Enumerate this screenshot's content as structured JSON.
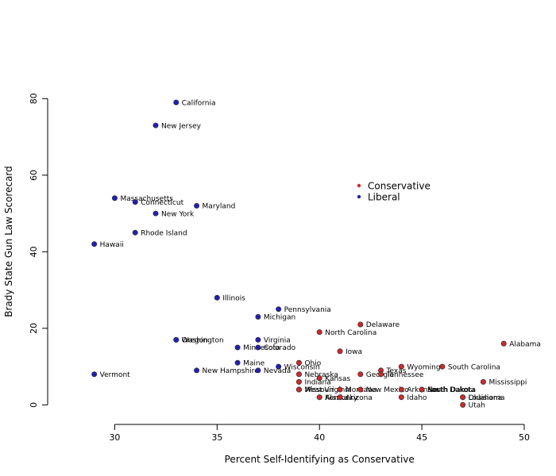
{
  "chart_data": {
    "type": "scatter",
    "title": "",
    "xlabel": "Percent Self-Identifying as Conservative",
    "ylabel": "Brady State Gun Law Scorecard",
    "xlim": [
      27.5,
      50
    ],
    "ylim": [
      -2,
      84
    ],
    "xticks": [
      30,
      35,
      40,
      45,
      50
    ],
    "yticks": [
      0,
      20,
      40,
      60,
      80
    ],
    "grid": false,
    "legend_position": "right-middle",
    "series": [
      {
        "name": "Conservative",
        "color": "#d62728",
        "points": [
          {
            "label": "Delaware",
            "x": 42,
            "y": 21
          },
          {
            "label": "North Carolina",
            "x": 40,
            "y": 19
          },
          {
            "label": "Alabama",
            "x": 49,
            "y": 16
          },
          {
            "label": "Iowa",
            "x": 41,
            "y": 14
          },
          {
            "label": "Ohio",
            "x": 39,
            "y": 11
          },
          {
            "label": "Wyoming",
            "x": 44,
            "y": 10
          },
          {
            "label": "South Carolina",
            "x": 46,
            "y": 10
          },
          {
            "label": "Texas",
            "x": 43,
            "y": 9
          },
          {
            "label": "Nebraska",
            "x": 39,
            "y": 8
          },
          {
            "label": "Georgia",
            "x": 42,
            "y": 8
          },
          {
            "label": "Tennessee",
            "x": 43,
            "y": 8
          },
          {
            "label": "Kansas",
            "x": 40,
            "y": 7
          },
          {
            "label": "Indiana",
            "x": 39,
            "y": 6
          },
          {
            "label": "Mississippi",
            "x": 48,
            "y": 6
          },
          {
            "label": "Missouri",
            "x": 39,
            "y": 4
          },
          {
            "label": "West Virginia",
            "x": 39,
            "y": 4
          },
          {
            "label": "Montana",
            "x": 41,
            "y": 4
          },
          {
            "label": "New Mexico",
            "x": 42,
            "y": 4
          },
          {
            "label": "Arkansas",
            "x": 44,
            "y": 4
          },
          {
            "label": "South Dakota",
            "x": 45,
            "y": 4
          },
          {
            "label": "North Dakota",
            "x": 45,
            "y": 4
          },
          {
            "label": "Alaska",
            "x": 40,
            "y": 2
          },
          {
            "label": "Kentucky",
            "x": 40,
            "y": 2
          },
          {
            "label": "Arizona",
            "x": 41,
            "y": 2
          },
          {
            "label": "Idaho",
            "x": 44,
            "y": 2
          },
          {
            "label": "Louisiana",
            "x": 47,
            "y": 2
          },
          {
            "label": "Oklahoma",
            "x": 47,
            "y": 2
          },
          {
            "label": "Utah",
            "x": 47,
            "y": 0
          }
        ]
      },
      {
        "name": "Liberal",
        "color": "#1f1fbf",
        "points": [
          {
            "label": "California",
            "x": 33,
            "y": 79
          },
          {
            "label": "New Jersey",
            "x": 32,
            "y": 73
          },
          {
            "label": "Massachusetts",
            "x": 30,
            "y": 54
          },
          {
            "label": "Connecticut",
            "x": 31,
            "y": 53
          },
          {
            "label": "Maryland",
            "x": 34,
            "y": 52
          },
          {
            "label": "New York",
            "x": 32,
            "y": 50
          },
          {
            "label": "Rhode Island",
            "x": 31,
            "y": 45
          },
          {
            "label": "Hawaii",
            "x": 29,
            "y": 42
          },
          {
            "label": "Illinois",
            "x": 35,
            "y": 28
          },
          {
            "label": "Pennsylvania",
            "x": 38,
            "y": 25
          },
          {
            "label": "Michigan",
            "x": 37,
            "y": 23
          },
          {
            "label": "Oregon",
            "x": 33,
            "y": 17
          },
          {
            "label": "Washington",
            "x": 33,
            "y": 17
          },
          {
            "label": "Virginia",
            "x": 37,
            "y": 17
          },
          {
            "label": "Minnesota",
            "x": 36,
            "y": 15
          },
          {
            "label": "Colorado",
            "x": 37,
            "y": 15
          },
          {
            "label": "Maine",
            "x": 36,
            "y": 11
          },
          {
            "label": "Wisconsin",
            "x": 38,
            "y": 10
          },
          {
            "label": "New Hampshire",
            "x": 34,
            "y": 9
          },
          {
            "label": "Nevada",
            "x": 37,
            "y": 9
          },
          {
            "label": "Vermont",
            "x": 29,
            "y": 8
          }
        ]
      }
    ]
  }
}
